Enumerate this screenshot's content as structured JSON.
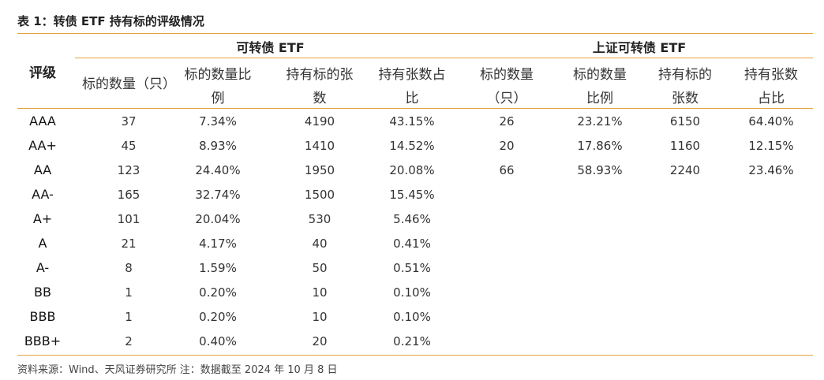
{
  "title": "表 1：转债 ETF 持有标的评级情况",
  "table": {
    "rating_header": "评级",
    "group1": {
      "title": "可转债 ETF",
      "headers": [
        [
          "标的数量（只）"
        ],
        [
          "标的数量比",
          "例"
        ],
        [
          "持有标的张",
          "数"
        ],
        [
          "持有张数占",
          "比"
        ]
      ]
    },
    "group2": {
      "title": "上证可转债 ETF",
      "headers": [
        [
          "标的数量",
          "（只）"
        ],
        [
          "标的数量",
          "比例"
        ],
        [
          "持有标的",
          "张数"
        ],
        [
          "持有张数",
          "占比"
        ]
      ]
    },
    "rows": [
      {
        "rating": "AAA",
        "g1": [
          "37",
          "7.34%",
          "4190",
          "43.15%"
        ],
        "g2": [
          "26",
          "23.21%",
          "6150",
          "64.40%"
        ]
      },
      {
        "rating": "AA+",
        "g1": [
          "45",
          "8.93%",
          "1410",
          "14.52%"
        ],
        "g2": [
          "20",
          "17.86%",
          "1160",
          "12.15%"
        ]
      },
      {
        "rating": "AA",
        "g1": [
          "123",
          "24.40%",
          "1950",
          "20.08%"
        ],
        "g2": [
          "66",
          "58.93%",
          "2240",
          "23.46%"
        ]
      },
      {
        "rating": "AA-",
        "g1": [
          "165",
          "32.74%",
          "1500",
          "15.45%"
        ],
        "g2": [
          "",
          "",
          "",
          ""
        ]
      },
      {
        "rating": "A+",
        "g1": [
          "101",
          "20.04%",
          "530",
          "5.46%"
        ],
        "g2": [
          "",
          "",
          "",
          ""
        ]
      },
      {
        "rating": "A",
        "g1": [
          "21",
          "4.17%",
          "40",
          "0.41%"
        ],
        "g2": [
          "",
          "",
          "",
          ""
        ]
      },
      {
        "rating": "A-",
        "g1": [
          "8",
          "1.59%",
          "50",
          "0.51%"
        ],
        "g2": [
          "",
          "",
          "",
          ""
        ]
      },
      {
        "rating": "BB",
        "g1": [
          "1",
          "0.20%",
          "10",
          "0.10%"
        ],
        "g2": [
          "",
          "",
          "",
          ""
        ]
      },
      {
        "rating": "BBB",
        "g1": [
          "1",
          "0.20%",
          "10",
          "0.10%"
        ],
        "g2": [
          "",
          "",
          "",
          ""
        ]
      },
      {
        "rating": "BBB+",
        "g1": [
          "2",
          "0.40%",
          "20",
          "0.21%"
        ],
        "g2": [
          "",
          "",
          "",
          ""
        ]
      }
    ]
  },
  "source": "资料来源：Wind、天风证券研究所  注：数据截至 2024 年 10 月 8 日",
  "colors": {
    "accent": "#e6a23c"
  }
}
